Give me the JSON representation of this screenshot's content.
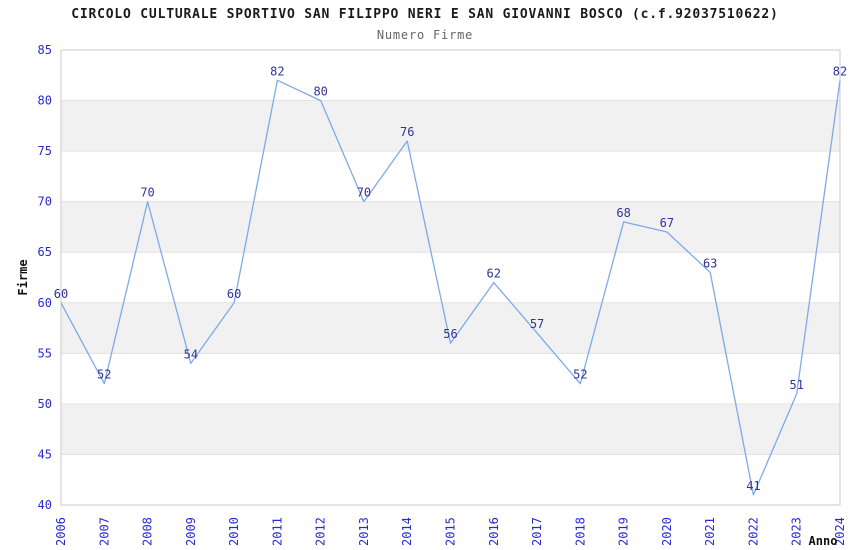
{
  "chart_data": {
    "type": "line",
    "title": "CIRCOLO CULTURALE SPORTIVO SAN FILIPPO NERI E SAN GIOVANNI BOSCO (c.f.92037510622)",
    "subtitle": "Numero Firme",
    "xlabel": "Anno",
    "ylabel": "Firme",
    "x": [
      2006,
      2007,
      2008,
      2009,
      2010,
      2011,
      2012,
      2013,
      2014,
      2015,
      2016,
      2017,
      2018,
      2019,
      2020,
      2021,
      2022,
      2023,
      2024
    ],
    "values": [
      60,
      52,
      70,
      54,
      60,
      82,
      80,
      70,
      76,
      56,
      62,
      57,
      52,
      68,
      67,
      63,
      41,
      51,
      82
    ],
    "ylim": [
      40,
      85
    ],
    "ytick_step": 5,
    "yticks": [
      40,
      45,
      50,
      55,
      60,
      65,
      70,
      75,
      80,
      85
    ],
    "grid": "horizontal-alternating-bands",
    "legend": "none",
    "point_labels_visible": true,
    "colors": {
      "line": "#7dabe8",
      "point_label": "#333399",
      "tick_label": "#2a2ad2",
      "band": "#f1f1f1",
      "gridline": "#e3e3e3",
      "plot_border": "#c9c9c9",
      "title": "#1a1a1a",
      "subtitle": "#666666",
      "axis_title": "#111111",
      "background": "#ffffff"
    }
  }
}
